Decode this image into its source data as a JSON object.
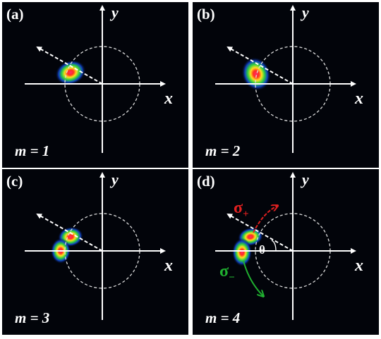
{
  "panels": [
    {
      "label": "(a)",
      "x_axis": "x",
      "y_axis": "y",
      "mode": "m = 1"
    },
    {
      "label": "(b)",
      "x_axis": "x",
      "y_axis": "y",
      "mode": "m = 2"
    },
    {
      "label": "(c)",
      "x_axis": "x",
      "y_axis": "y",
      "mode": "m = 3"
    },
    {
      "label": "(d)",
      "x_axis": "x",
      "y_axis": "y",
      "mode": "m = 4",
      "sigma_plus": {
        "symbol": "σ",
        "subscript": "+"
      },
      "sigma_minus": {
        "symbol": "σ",
        "subscript": "−"
      },
      "angle": "θ"
    }
  ]
}
